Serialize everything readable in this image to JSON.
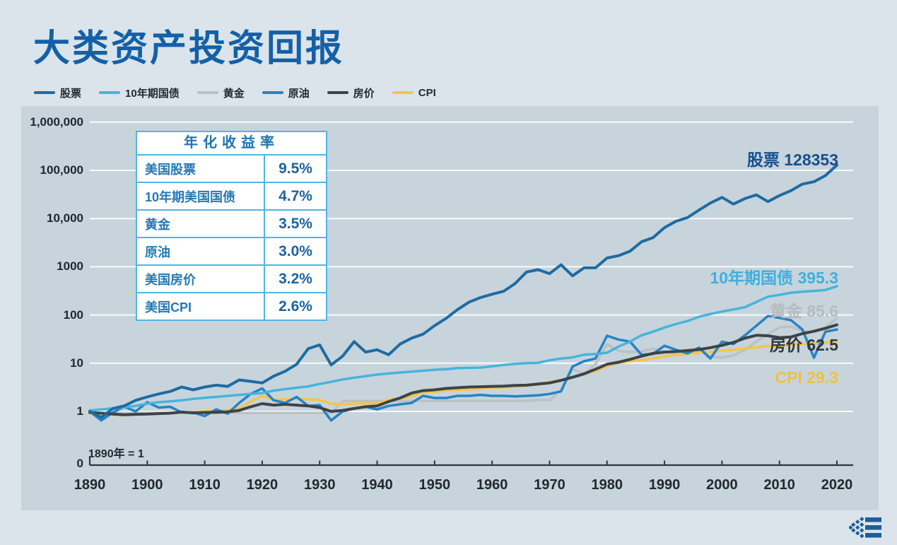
{
  "title": "大类资产投资回报",
  "colors": {
    "background": "#dae4ea",
    "panel": "#c7d4dc",
    "gridline": "#ffffff",
    "axis": "#30363c",
    "title_text": "#1460a8",
    "table_border": "#4fb6e6",
    "logo_blue": "#1d5c9f"
  },
  "legend": {
    "items": [
      {
        "label": "股票",
        "color": "#1e6ba3"
      },
      {
        "label": "10年期国债",
        "color": "#47b4dc"
      },
      {
        "label": "黄金",
        "color": "#bdc1c4"
      },
      {
        "label": "原油",
        "color": "#2583c5"
      },
      {
        "label": "房价",
        "color": "#3d4348"
      },
      {
        "label": "CPI",
        "color": "#f2c64b"
      }
    ]
  },
  "summary_table": {
    "header": "年化收益率",
    "rows": [
      {
        "label": "美国股票",
        "value": "9.5%"
      },
      {
        "label": "10年期美国国债",
        "value": "4.7%"
      },
      {
        "label": "黄金",
        "value": "3.5%"
      },
      {
        "label": "原油",
        "value": "3.0%"
      },
      {
        "label": "美国房价",
        "value": "3.2%"
      },
      {
        "label": "美国CPI",
        "value": "2.6%"
      }
    ]
  },
  "axis": {
    "note": "1890年 = 1",
    "y_tick_labels": [
      "1,000,000",
      "100,000",
      "10,000",
      "1000",
      "100",
      "10",
      "1"
    ],
    "zero_label": "0",
    "x_tick_labels": [
      "1890",
      "1900",
      "1910",
      "1920",
      "1930",
      "1940",
      "1950",
      "1960",
      "1970",
      "1980",
      "1990",
      "2000",
      "2010",
      "2020"
    ]
  },
  "end_labels": [
    {
      "text": "股票 128353",
      "color": "#174f8d",
      "y": 221
    },
    {
      "text": "10年期国债 395.3",
      "color": "#3fb0de",
      "y": 388
    },
    {
      "text": "黄金 85.6",
      "color": "#b6bbbe",
      "y": 435
    },
    {
      "text": "房价 62.5",
      "color": "#31373c",
      "y": 483
    },
    {
      "text": "CPI 29.3",
      "color": "#eec23e",
      "y": 535
    }
  ],
  "chart_data": {
    "type": "line",
    "title": "大类资产投资回报",
    "log_scale": true,
    "x_range": [
      1890,
      2020
    ],
    "y_range": [
      1,
      1000000
    ],
    "base_note": "1890年 = 1",
    "grid": "horizontal-only",
    "legend_position": "top-left",
    "years": [
      1890,
      1892,
      1894,
      1896,
      1898,
      1900,
      1902,
      1904,
      1906,
      1908,
      1910,
      1912,
      1914,
      1916,
      1918,
      1920,
      1922,
      1924,
      1926,
      1928,
      1930,
      1932,
      1934,
      1936,
      1938,
      1940,
      1942,
      1944,
      1946,
      1948,
      1950,
      1952,
      1954,
      1956,
      1958,
      1960,
      1962,
      1964,
      1966,
      1968,
      1970,
      1972,
      1974,
      1976,
      1978,
      1980,
      1982,
      1984,
      1986,
      1988,
      1990,
      1992,
      1994,
      1996,
      1998,
      2000,
      2002,
      2004,
      2006,
      2008,
      2010,
      2012,
      2014,
      2016,
      2018,
      2020
    ],
    "series": [
      {
        "name": "股票",
        "color": "#1e6ba3",
        "width": 4,
        "end_value": 128353,
        "annualized": "9.5%",
        "values": [
          1.0,
          0.75,
          1.15,
          1.3,
          1.7,
          2.0,
          2.3,
          2.6,
          3.2,
          2.8,
          3.2,
          3.5,
          3.3,
          4.5,
          4.2,
          3.9,
          5.4,
          6.8,
          9.5,
          20,
          24,
          9.2,
          14,
          28,
          17,
          19,
          15,
          25,
          33,
          40,
          60,
          85,
          130,
          185,
          230,
          270,
          310,
          450,
          780,
          870,
          720,
          1100,
          650,
          950,
          950,
          1520,
          1700,
          2100,
          3300,
          4000,
          6500,
          8800,
          10500,
          15000,
          21000,
          27500,
          20000,
          26000,
          31000,
          22500,
          30000,
          38000,
          52000,
          58000,
          78000,
          128353
        ]
      },
      {
        "name": "10年期国债",
        "color": "#47b4dc",
        "width": 3.5,
        "end_value": 395.3,
        "annualized": "4.7%",
        "values": [
          1.05,
          1.1,
          1.16,
          1.22,
          1.3,
          1.45,
          1.55,
          1.62,
          1.7,
          1.82,
          1.92,
          2.0,
          2.1,
          2.2,
          2.3,
          2.4,
          2.7,
          2.9,
          3.1,
          3.3,
          3.7,
          4.1,
          4.6,
          5.0,
          5.4,
          5.8,
          6.1,
          6.4,
          6.7,
          7.0,
          7.3,
          7.5,
          7.9,
          8.0,
          8.1,
          8.6,
          9.2,
          9.7,
          10.0,
          10.2,
          11.5,
          12.5,
          13.2,
          15,
          15.5,
          16.5,
          22,
          28,
          38,
          45,
          55,
          65,
          75,
          92,
          105,
          118,
          130,
          145,
          187,
          240,
          262,
          290,
          305,
          315,
          330,
          395.3
        ]
      },
      {
        "name": "黄金",
        "color": "#bdc1c4",
        "width": 3.5,
        "end_value": 85.6,
        "annualized": "3.5%",
        "values": [
          0.95,
          0.93,
          0.93,
          0.93,
          0.93,
          0.93,
          0.93,
          0.93,
          0.93,
          0.93,
          0.93,
          0.93,
          0.93,
          0.93,
          0.93,
          0.93,
          0.93,
          0.93,
          0.93,
          0.93,
          0.93,
          0.93,
          1.65,
          1.65,
          1.65,
          1.65,
          1.65,
          1.65,
          1.65,
          1.65,
          1.65,
          1.65,
          1.65,
          1.65,
          1.65,
          1.65,
          1.65,
          1.65,
          1.65,
          1.72,
          1.7,
          2.8,
          7.5,
          6.0,
          9.5,
          25,
          18,
          17,
          17.5,
          20,
          17.5,
          16,
          17.5,
          17.8,
          13.8,
          13,
          14.5,
          19,
          28,
          40,
          55,
          58,
          46,
          44,
          55,
          85.6
        ]
      },
      {
        "name": "原油",
        "color": "#2583c5",
        "width": 3.5,
        "end_value": 50,
        "annualized": "3.0%",
        "values": [
          1.0,
          0.65,
          0.95,
          1.25,
          1.0,
          1.55,
          1.2,
          1.25,
          0.95,
          0.95,
          0.8,
          1.1,
          0.9,
          1.5,
          2.3,
          3.0,
          1.7,
          1.5,
          2.0,
          1.3,
          1.35,
          0.65,
          1.0,
          1.15,
          1.25,
          1.1,
          1.3,
          1.4,
          1.5,
          2.1,
          1.9,
          1.9,
          2.1,
          2.1,
          2.2,
          2.1,
          2.1,
          2.05,
          2.1,
          2.15,
          2.3,
          2.6,
          8.5,
          11,
          12.5,
          37,
          31,
          28,
          15,
          15.5,
          23,
          19,
          16,
          21,
          12.5,
          28,
          25,
          38,
          60,
          95,
          87,
          78,
          50,
          13,
          45,
          50
        ]
      },
      {
        "name": "房价",
        "color": "#3d4348",
        "width": 4,
        "end_value": 62.5,
        "annualized": "3.2%",
        "values": [
          0.95,
          0.92,
          0.88,
          0.85,
          0.87,
          0.88,
          0.9,
          0.92,
          0.97,
          0.93,
          0.95,
          0.96,
          0.98,
          1.05,
          1.25,
          1.45,
          1.35,
          1.4,
          1.35,
          1.3,
          1.2,
          1.0,
          1.05,
          1.15,
          1.25,
          1.3,
          1.6,
          1.9,
          2.4,
          2.7,
          2.8,
          3.0,
          3.1,
          3.2,
          3.25,
          3.3,
          3.35,
          3.45,
          3.5,
          3.7,
          3.9,
          4.4,
          5.1,
          6.0,
          7.5,
          9.5,
          10.5,
          12,
          14,
          16,
          17,
          17.5,
          18.3,
          19.2,
          21,
          23.5,
          27,
          33,
          38,
          37,
          34,
          35,
          41,
          46,
          53,
          62.5
        ]
      },
      {
        "name": "CPI",
        "color": "#f2c64b",
        "width": 3.5,
        "end_value": 29.3,
        "annualized": "2.6%",
        "values": [
          0.9,
          0.88,
          0.85,
          0.84,
          0.86,
          0.88,
          0.92,
          0.93,
          0.95,
          0.97,
          1.0,
          1.03,
          1.05,
          1.15,
          1.6,
          2.1,
          1.75,
          1.78,
          1.82,
          1.78,
          1.72,
          1.45,
          1.4,
          1.45,
          1.47,
          1.47,
          1.75,
          1.85,
          2.05,
          2.5,
          2.55,
          2.75,
          2.8,
          2.85,
          3.0,
          3.1,
          3.15,
          3.25,
          3.4,
          3.65,
          4.1,
          4.4,
          5.2,
          6.0,
          6.8,
          8.7,
          10.2,
          11,
          11.6,
          12.5,
          13.8,
          14.8,
          15.6,
          16.6,
          17.2,
          18.2,
          19,
          20,
          21.3,
          22.7,
          23,
          24.3,
          25,
          25.5,
          26.5,
          29.3
        ]
      }
    ]
  }
}
